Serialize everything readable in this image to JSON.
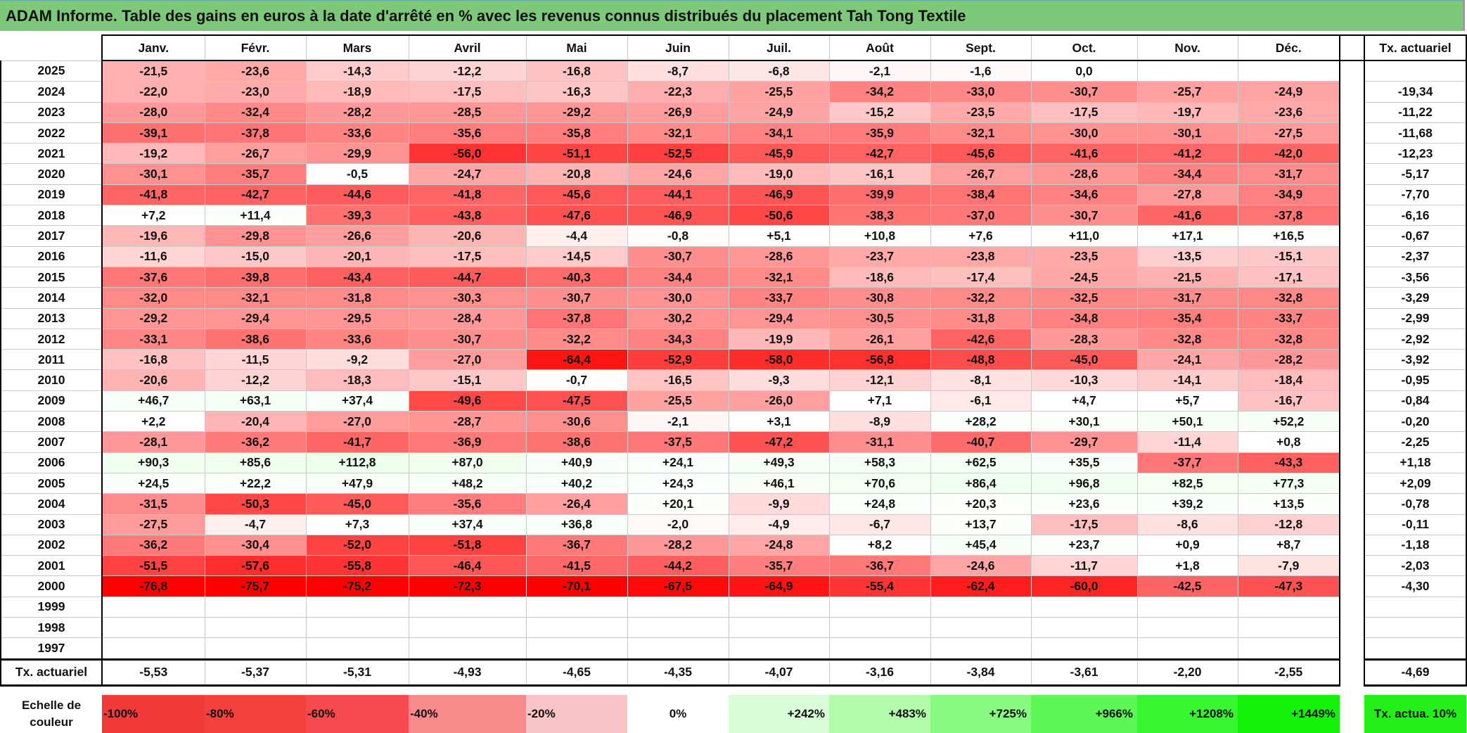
{
  "title": "ADAM Informe. Table des gains en euros à la date d'arrêté en % avec les revenus connus distribués du placement Tah Tong Textile",
  "months": [
    "Janv.",
    "Févr.",
    "Mars",
    "Avril",
    "Mai",
    "Juin",
    "Juil.",
    "Août",
    "Sept.",
    "Oct.",
    "Nov.",
    "Déc."
  ],
  "tx_header": "Tx. actuariel",
  "rows": [
    {
      "year": "2025",
      "values": [
        "-21,5",
        "-23,6",
        "-14,3",
        "-12,2",
        "-16,8",
        "-8,7",
        "-6,8",
        "-2,1",
        "-1,6",
        "0,0",
        "",
        ""
      ],
      "tx": ""
    },
    {
      "year": "2024",
      "values": [
        "-22,0",
        "-23,0",
        "-18,9",
        "-17,5",
        "-16,3",
        "-22,3",
        "-25,5",
        "-34,2",
        "-33,0",
        "-30,7",
        "-25,7",
        "-24,9"
      ],
      "tx": "-19,34"
    },
    {
      "year": "2023",
      "values": [
        "-28,0",
        "-32,4",
        "-28,2",
        "-28,5",
        "-29,2",
        "-26,9",
        "-24,9",
        "-15,2",
        "-23,5",
        "-17,5",
        "-19,7",
        "-23,6"
      ],
      "tx": "-11,22"
    },
    {
      "year": "2022",
      "values": [
        "-39,1",
        "-37,8",
        "-33,6",
        "-35,6",
        "-35,8",
        "-32,1",
        "-34,1",
        "-35,9",
        "-32,1",
        "-30,0",
        "-30,1",
        "-27,5"
      ],
      "tx": "-11,68"
    },
    {
      "year": "2021",
      "values": [
        "-19,2",
        "-26,7",
        "-29,9",
        "-56,0",
        "-51,1",
        "-52,5",
        "-45,9",
        "-42,7",
        "-45,6",
        "-41,6",
        "-41,2",
        "-42,0"
      ],
      "tx": "-12,23"
    },
    {
      "year": "2020",
      "values": [
        "-30,1",
        "-35,7",
        "-0,5",
        "-24,7",
        "-20,8",
        "-24,6",
        "-19,0",
        "-16,1",
        "-26,7",
        "-28,6",
        "-34,4",
        "-31,7"
      ],
      "tx": "-5,17"
    },
    {
      "year": "2019",
      "values": [
        "-41,8",
        "-42,7",
        "-44,6",
        "-41,8",
        "-45,6",
        "-44,1",
        "-46,9",
        "-39,9",
        "-38,4",
        "-34,6",
        "-27,8",
        "-34,9"
      ],
      "tx": "-7,70"
    },
    {
      "year": "2018",
      "values": [
        "+7,2",
        "+11,4",
        "-39,3",
        "-43,8",
        "-47,6",
        "-46,9",
        "-50,6",
        "-38,3",
        "-37,0",
        "-30,7",
        "-41,6",
        "-37,8"
      ],
      "tx": "-6,16"
    },
    {
      "year": "2017",
      "values": [
        "-19,6",
        "-29,8",
        "-26,6",
        "-20,6",
        "-4,4",
        "-0,8",
        "+5,1",
        "+10,8",
        "+7,6",
        "+11,0",
        "+17,1",
        "+16,5"
      ],
      "tx": "-0,67"
    },
    {
      "year": "2016",
      "values": [
        "-11,6",
        "-15,0",
        "-20,1",
        "-17,5",
        "-14,5",
        "-30,7",
        "-28,6",
        "-23,7",
        "-23,8",
        "-23,5",
        "-13,5",
        "-15,1"
      ],
      "tx": "-2,37"
    },
    {
      "year": "2015",
      "values": [
        "-37,6",
        "-39,8",
        "-43,4",
        "-44,7",
        "-40,3",
        "-34,4",
        "-32,1",
        "-18,6",
        "-17,4",
        "-24,5",
        "-21,5",
        "-17,1"
      ],
      "tx": "-3,56"
    },
    {
      "year": "2014",
      "values": [
        "-32,0",
        "-32,1",
        "-31,8",
        "-30,3",
        "-30,7",
        "-30,0",
        "-33,7",
        "-30,8",
        "-32,2",
        "-32,5",
        "-31,7",
        "-32,8"
      ],
      "tx": "-3,29"
    },
    {
      "year": "2013",
      "values": [
        "-29,2",
        "-29,4",
        "-29,5",
        "-28,4",
        "-37,8",
        "-30,2",
        "-29,4",
        "-30,5",
        "-31,8",
        "-34,8",
        "-35,4",
        "-33,7"
      ],
      "tx": "-2,99"
    },
    {
      "year": "2012",
      "values": [
        "-33,1",
        "-38,6",
        "-33,6",
        "-30,7",
        "-32,2",
        "-34,3",
        "-19,9",
        "-26,1",
        "-42,6",
        "-28,3",
        "-32,8",
        "-32,8"
      ],
      "tx": "-2,92"
    },
    {
      "year": "2011",
      "values": [
        "-16,8",
        "-11,5",
        "-9,2",
        "-27,0",
        "-64,4",
        "-52,9",
        "-58,0",
        "-56,8",
        "-48,8",
        "-45,0",
        "-24,1",
        "-28,2"
      ],
      "tx": "-3,92"
    },
    {
      "year": "2010",
      "values": [
        "-20,6",
        "-12,2",
        "-18,3",
        "-15,1",
        "-0,7",
        "-16,5",
        "-9,3",
        "-12,1",
        "-8,1",
        "-10,3",
        "-14,1",
        "-18,4"
      ],
      "tx": "-0,95"
    },
    {
      "year": "2009",
      "values": [
        "+46,7",
        "+63,1",
        "+37,4",
        "-49,6",
        "-47,5",
        "-25,5",
        "-26,0",
        "+7,1",
        "-6,1",
        "+4,7",
        "+5,7",
        "-16,7"
      ],
      "tx": "-0,84"
    },
    {
      "year": "2008",
      "values": [
        "+2,2",
        "-20,4",
        "-27,0",
        "-28,7",
        "-30,6",
        "-2,1",
        "+3,1",
        "-8,9",
        "+28,2",
        "+30,1",
        "+50,1",
        "+52,2"
      ],
      "tx": "-0,20"
    },
    {
      "year": "2007",
      "values": [
        "-28,1",
        "-36,2",
        "-41,7",
        "-36,9",
        "-38,6",
        "-37,5",
        "-47,2",
        "-31,1",
        "-40,7",
        "-29,7",
        "-11,4",
        "+0,8"
      ],
      "tx": "-2,25"
    },
    {
      "year": "2006",
      "values": [
        "+90,3",
        "+85,6",
        "+112,8",
        "+87,0",
        "+40,9",
        "+24,1",
        "+49,3",
        "+58,3",
        "+62,5",
        "+35,5",
        "-37,7",
        "-43,3"
      ],
      "tx": "+1,18"
    },
    {
      "year": "2005",
      "values": [
        "+24,5",
        "+22,2",
        "+47,9",
        "+48,2",
        "+40,2",
        "+24,3",
        "+46,1",
        "+70,6",
        "+86,4",
        "+96,8",
        "+82,5",
        "+77,3"
      ],
      "tx": "+2,09"
    },
    {
      "year": "2004",
      "values": [
        "-31,5",
        "-50,3",
        "-45,0",
        "-35,6",
        "-26,4",
        "+20,1",
        "-9,9",
        "+24,8",
        "+20,3",
        "+23,6",
        "+39,2",
        "+13,5"
      ],
      "tx": "-0,78"
    },
    {
      "year": "2003",
      "values": [
        "-27,5",
        "-4,7",
        "+7,3",
        "+37,4",
        "+36,8",
        "-2,0",
        "-4,9",
        "-6,7",
        "+13,7",
        "-17,5",
        "-8,6",
        "-12,8"
      ],
      "tx": "-0,11"
    },
    {
      "year": "2002",
      "values": [
        "-36,2",
        "-30,4",
        "-52,0",
        "-51,8",
        "-36,7",
        "-28,2",
        "-24,8",
        "+8,2",
        "+45,4",
        "+23,7",
        "+0,9",
        "+8,7"
      ],
      "tx": "-1,18"
    },
    {
      "year": "2001",
      "values": [
        "-51,5",
        "-57,6",
        "-55,8",
        "-46,4",
        "-41,5",
        "-44,2",
        "-35,7",
        "-36,7",
        "-24,6",
        "-11,7",
        "+1,8",
        "-7,9"
      ],
      "tx": "-2,03"
    },
    {
      "year": "2000",
      "values": [
        "-76,8",
        "-75,7",
        "-75,2",
        "-72,3",
        "-70,1",
        "-67,5",
        "-64,9",
        "-55,4",
        "-62,4",
        "-60,0",
        "-42,5",
        "-47,3"
      ],
      "tx": "-4,30"
    },
    {
      "year": "1999",
      "values": [
        "",
        "",
        "",
        "",
        "",
        "",
        "",
        "",
        "",
        "",
        "",
        ""
      ],
      "tx": ""
    },
    {
      "year": "1998",
      "values": [
        "",
        "",
        "",
        "",
        "",
        "",
        "",
        "",
        "",
        "",
        "",
        ""
      ],
      "tx": ""
    },
    {
      "year": "1997",
      "values": [
        "",
        "",
        "",
        "",
        "",
        "",
        "",
        "",
        "",
        "",
        "",
        ""
      ],
      "tx": ""
    }
  ],
  "totals": {
    "label": "Tx. actuariel",
    "values": [
      "-5,53",
      "-5,37",
      "-5,31",
      "-4,93",
      "-4,65",
      "-4,35",
      "-4,07",
      "-3,16",
      "-3,84",
      "-3,61",
      "-2,20",
      "-2,55"
    ],
    "tx": "-4,69"
  },
  "legend": {
    "label": "Echelle de couleur",
    "items": [
      {
        "label": "-100%",
        "color": "#f33a3a"
      },
      {
        "label": "-80%",
        "color": "#f54040"
      },
      {
        "label": "-60%",
        "color": "#f74a4e"
      },
      {
        "label": "-40%",
        "color": "#f88a8c"
      },
      {
        "label": "-20%",
        "color": "#fac3c5"
      },
      {
        "label": "0%",
        "color": "#ffffff"
      },
      {
        "label": "+242%",
        "color": "#d9fdd6"
      },
      {
        "label": "+483%",
        "color": "#b2fbaa"
      },
      {
        "label": "+725%",
        "color": "#88fa80"
      },
      {
        "label": "+966%",
        "color": "#5df756"
      },
      {
        "label": "+1208%",
        "color": "#37f52e"
      },
      {
        "label": "+1449%",
        "color": "#14f20a"
      }
    ],
    "tx_label": "Tx. actua. 10%",
    "tx_color": "#22f018"
  }
}
